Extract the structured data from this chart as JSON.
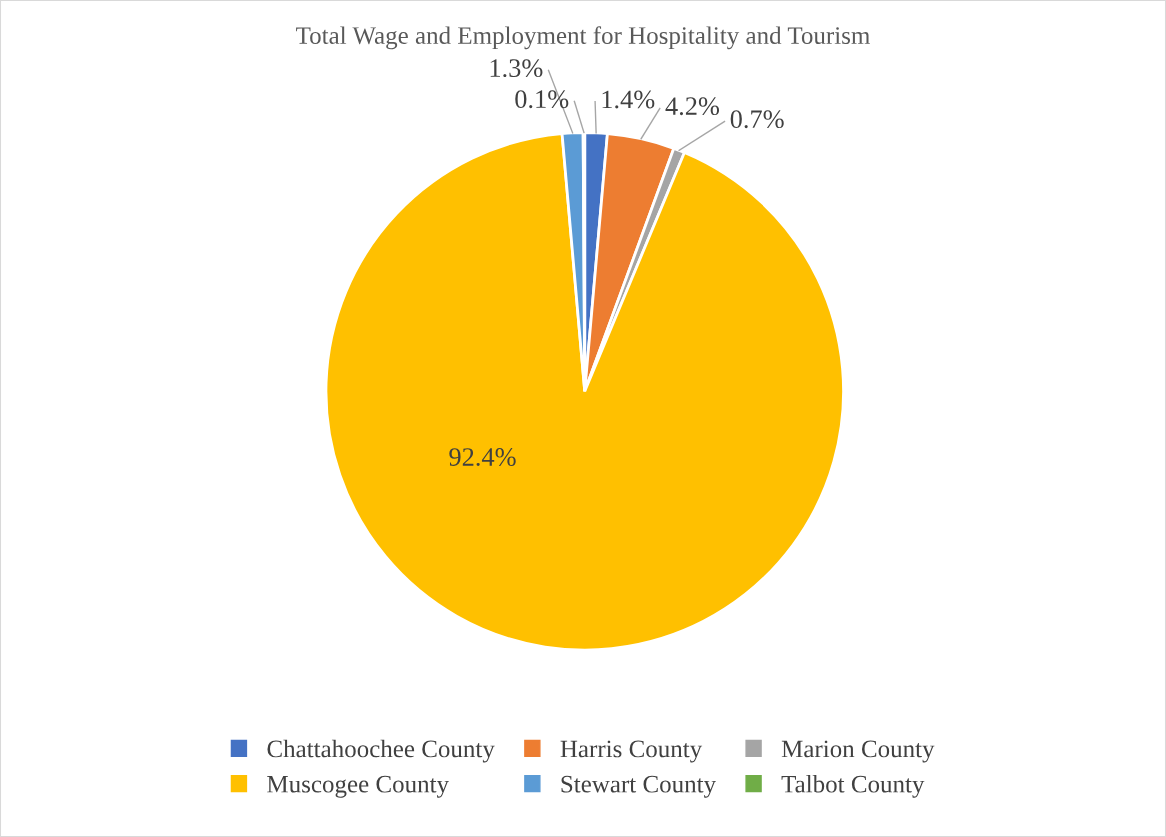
{
  "chart_data": {
    "type": "pie",
    "title": "Total Wage and Employment for Hospitality and Tourism",
    "categories": [
      "Chattahoochee County",
      "Harris County",
      "Marion County",
      "Muscogee County",
      "Stewart County",
      "Talbot County"
    ],
    "values": [
      1.4,
      4.2,
      0.7,
      92.4,
      1.3,
      0.1
    ],
    "value_labels": [
      "1.4%",
      "4.2%",
      "0.7%",
      "92.4%",
      "1.3%",
      "0.1%"
    ],
    "colors": [
      "#4472c4",
      "#ed7d31",
      "#a5a5a5",
      "#ffc000",
      "#5b9bd5",
      "#70ad47"
    ],
    "legend": "bottom"
  }
}
